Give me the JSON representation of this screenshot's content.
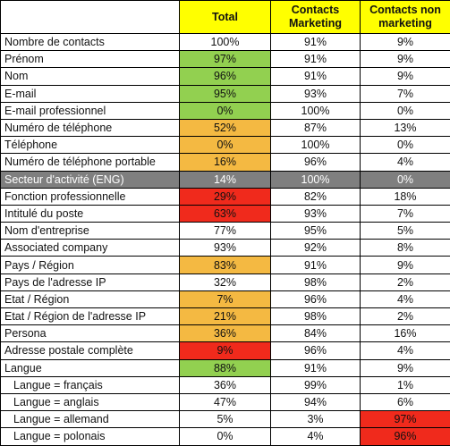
{
  "table": {
    "header": [
      "Total",
      "Contacts Marketing",
      "Contacts non marketing"
    ],
    "rows": [
      [
        "Nombre de contacts",
        "100%",
        "91%",
        "9%"
      ],
      [
        "Prénom",
        "97%",
        "91%",
        "9%"
      ],
      [
        "Nom",
        "96%",
        "91%",
        "9%"
      ],
      [
        "E-mail",
        "95%",
        "93%",
        "7%"
      ],
      [
        "E-mail professionnel",
        "0%",
        "100%",
        "0%"
      ],
      [
        "Numéro de téléphone",
        "52%",
        "87%",
        "13%"
      ],
      [
        "Téléphone",
        "0%",
        "100%",
        "0%"
      ],
      [
        "Numéro de téléphone portable",
        "16%",
        "96%",
        "4%"
      ],
      [
        "Secteur d'activité (ENG)",
        "14%",
        "100%",
        "0%"
      ],
      [
        "Fonction professionnelle",
        "29%",
        "82%",
        "18%"
      ],
      [
        "Intitulé du poste",
        "63%",
        "93%",
        "7%"
      ],
      [
        "Nom d'entreprise",
        "77%",
        "95%",
        "5%"
      ],
      [
        "Associated company",
        "93%",
        "92%",
        "8%"
      ],
      [
        "Pays / Région",
        "83%",
        "91%",
        "9%"
      ],
      [
        "Pays de l'adresse IP",
        "32%",
        "98%",
        "2%"
      ],
      [
        "Etat / Région",
        "7%",
        "96%",
        "4%"
      ],
      [
        "Etat / Région de l'adresse IP",
        "21%",
        "98%",
        "2%"
      ],
      [
        "Persona",
        "36%",
        "84%",
        "16%"
      ],
      [
        "Adresse postale complète",
        "9%",
        "96%",
        "4%"
      ],
      [
        "Langue",
        "88%",
        "91%",
        "9%"
      ],
      [
        "Langue = français",
        "36%",
        "99%",
        "1%"
      ],
      [
        "Langue = anglais",
        "47%",
        "94%",
        "6%"
      ],
      [
        "Langue = allemand",
        "5%",
        "3%",
        "97%"
      ],
      [
        "Langue = polonais",
        "0%",
        "4%",
        "96%"
      ]
    ]
  }
}
